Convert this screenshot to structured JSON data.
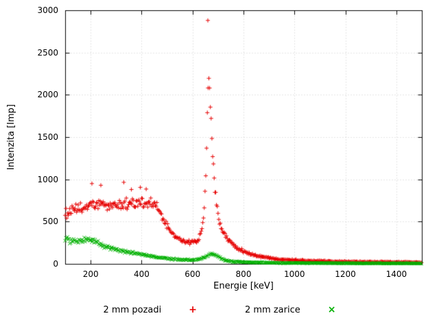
{
  "figure": {
    "background": "#ffffff"
  },
  "legend": {
    "glyphs": [
      "+",
      "×"
    ]
  },
  "chart_data": {
    "type": "scatter",
    "title": "",
    "xlabel": "Energie [keV]",
    "ylabel": "Intenzita [Imp]",
    "xlim": [
      100,
      1500
    ],
    "ylim": [
      0,
      3000
    ],
    "xticks": [
      200,
      400,
      600,
      800,
      1000,
      1200,
      1400
    ],
    "yticks": [
      0,
      500,
      1000,
      1500,
      2000,
      2500,
      3000
    ],
    "grid": true,
    "legend_position": "bottom-center",
    "sample_step_keV": 3,
    "series": [
      {
        "name": "2 mm pozadi",
        "marker": "plus",
        "color": "#e60000",
        "anchors": [
          [
            100,
            590,
            70
          ],
          [
            120,
            620,
            70
          ],
          [
            140,
            645,
            70
          ],
          [
            170,
            660,
            75
          ],
          [
            200,
            690,
            80
          ],
          [
            230,
            700,
            85
          ],
          [
            260,
            690,
            85
          ],
          [
            290,
            695,
            85
          ],
          [
            320,
            705,
            90
          ],
          [
            350,
            715,
            85
          ],
          [
            380,
            720,
            90
          ],
          [
            410,
            725,
            85
          ],
          [
            435,
            715,
            80
          ],
          [
            455,
            685,
            70
          ],
          [
            475,
            590,
            60
          ],
          [
            495,
            470,
            55
          ],
          [
            515,
            380,
            45
          ],
          [
            535,
            315,
            40
          ],
          [
            560,
            275,
            35
          ],
          [
            585,
            255,
            32
          ],
          [
            605,
            258,
            32
          ],
          [
            620,
            285,
            36
          ],
          [
            632,
            350,
            40
          ],
          [
            642,
            520,
            50
          ],
          [
            648,
            780,
            60
          ],
          [
            652,
            1080,
            70
          ],
          [
            655,
            1380,
            80
          ],
          [
            658,
            1740,
            90
          ],
          [
            660,
            1990,
            90
          ],
          [
            662,
            2170,
            70
          ],
          [
            664,
            2150,
            80
          ],
          [
            667,
            2060,
            80
          ],
          [
            670,
            1880,
            85
          ],
          [
            674,
            1610,
            85
          ],
          [
            678,
            1360,
            80
          ],
          [
            683,
            1110,
            75
          ],
          [
            688,
            905,
            70
          ],
          [
            694,
            705,
            60
          ],
          [
            700,
            565,
            55
          ],
          [
            710,
            445,
            45
          ],
          [
            722,
            360,
            40
          ],
          [
            735,
            300,
            35
          ],
          [
            750,
            255,
            30
          ],
          [
            770,
            205,
            26
          ],
          [
            790,
            165,
            24
          ],
          [
            810,
            135,
            20
          ],
          [
            840,
            105,
            18
          ],
          [
            870,
            85,
            15
          ],
          [
            900,
            70,
            13
          ],
          [
            940,
            56,
            11
          ],
          [
            980,
            48,
            10
          ],
          [
            1020,
            42,
            10
          ],
          [
            1080,
            35,
            9
          ],
          [
            1140,
            30,
            8
          ],
          [
            1220,
            26,
            8
          ],
          [
            1300,
            22,
            7
          ],
          [
            1380,
            20,
            7
          ],
          [
            1450,
            18,
            6
          ],
          [
            1500,
            16,
            6
          ]
        ],
        "outliers": [
          [
            205,
            950
          ],
          [
            240,
            930
          ],
          [
            330,
            965
          ],
          [
            360,
            880
          ],
          [
            395,
            905
          ],
          [
            418,
            885
          ],
          [
            660,
            2880
          ]
        ]
      },
      {
        "name": "2 mm zarice",
        "marker": "cross",
        "color": "#00b000",
        "anchors": [
          [
            100,
            305,
            55
          ],
          [
            115,
            285,
            45
          ],
          [
            130,
            272,
            42
          ],
          [
            150,
            262,
            40
          ],
          [
            170,
            272,
            42
          ],
          [
            190,
            288,
            45
          ],
          [
            205,
            282,
            42
          ],
          [
            220,
            258,
            38
          ],
          [
            240,
            228,
            34
          ],
          [
            260,
            202,
            30
          ],
          [
            280,
            182,
            28
          ],
          [
            300,
            167,
            26
          ],
          [
            320,
            152,
            24
          ],
          [
            340,
            140,
            22
          ],
          [
            360,
            130,
            21
          ],
          [
            380,
            118,
            20
          ],
          [
            400,
            107,
            18
          ],
          [
            420,
            98,
            17
          ],
          [
            440,
            89,
            16
          ],
          [
            460,
            80,
            14
          ],
          [
            480,
            72,
            13
          ],
          [
            500,
            64,
            12
          ],
          [
            520,
            58,
            11
          ],
          [
            545,
            52,
            10
          ],
          [
            570,
            49,
            10
          ],
          [
            595,
            47,
            10
          ],
          [
            615,
            50,
            10
          ],
          [
            632,
            58,
            11
          ],
          [
            645,
            72,
            12
          ],
          [
            655,
            92,
            13
          ],
          [
            665,
            112,
            14
          ],
          [
            672,
            122,
            14
          ],
          [
            680,
            118,
            14
          ],
          [
            690,
            103,
            13
          ],
          [
            700,
            88,
            12
          ],
          [
            712,
            65,
            11
          ],
          [
            725,
            46,
            10
          ],
          [
            740,
            34,
            9
          ],
          [
            760,
            27,
            8
          ],
          [
            790,
            22,
            7
          ],
          [
            830,
            18,
            6
          ],
          [
            880,
            15,
            5
          ],
          [
            940,
            12,
            5
          ],
          [
            1000,
            11,
            4
          ],
          [
            1100,
            9,
            4
          ],
          [
            1200,
            8,
            4
          ],
          [
            1300,
            7,
            3
          ],
          [
            1400,
            6,
            3
          ],
          [
            1500,
            6,
            3
          ]
        ],
        "outliers": []
      }
    ]
  }
}
